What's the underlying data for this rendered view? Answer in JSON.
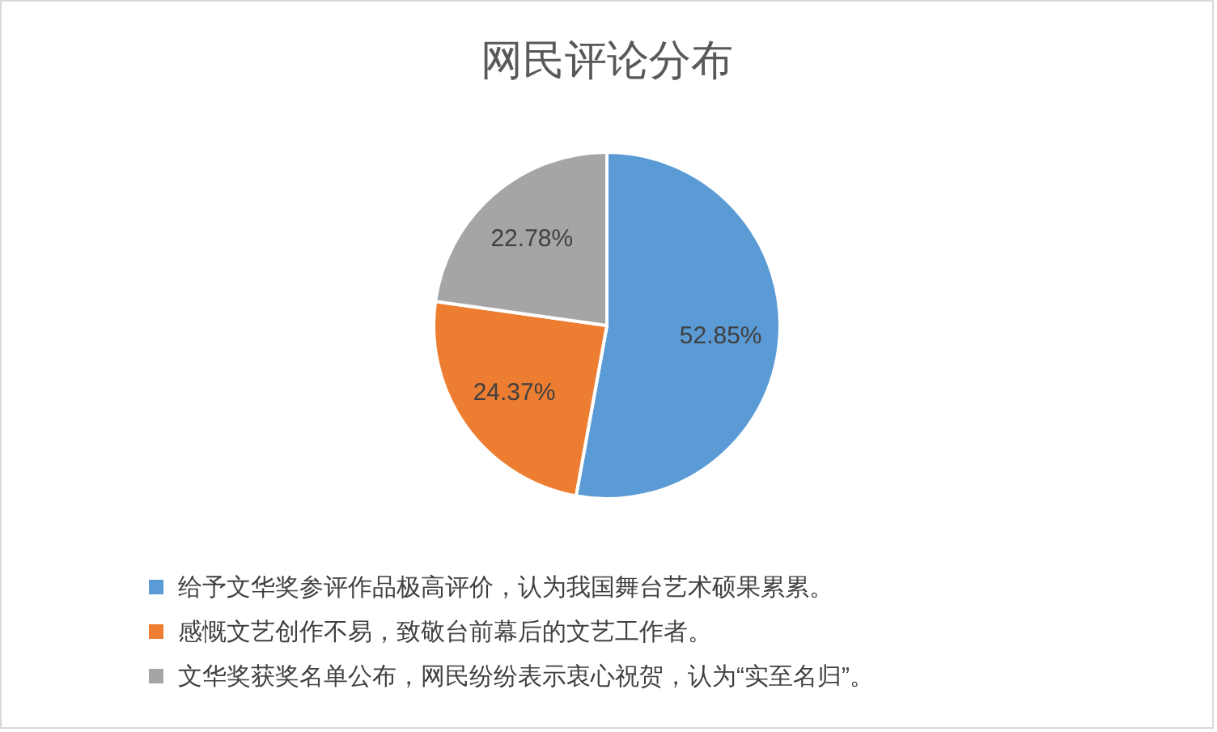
{
  "chart_data": {
    "type": "pie",
    "title": "网民评论分布",
    "categories": [
      "给予文华奖参评作品极高评价，认为我国舞台艺术硕果累累。",
      "感慨文艺创作不易，致敬台前幕后的文艺工作者。",
      "文华奖获奖名单公布，网民纷纷表示衷心祝贺，认为“实至名归”。"
    ],
    "values": [
      52.85,
      24.37,
      22.78
    ],
    "colors": [
      "#5b9bd5",
      "#ed7d31",
      "#a5a5a5"
    ],
    "value_labels": [
      "52.85%",
      "24.37%",
      "22.78%"
    ],
    "legend": "bottom"
  }
}
